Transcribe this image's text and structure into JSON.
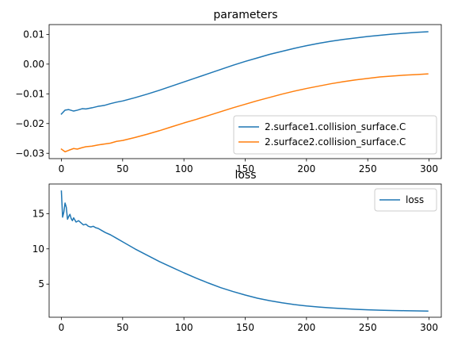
{
  "chart_data": [
    {
      "type": "line",
      "title": "parameters",
      "xlabel": "",
      "ylabel": "",
      "xlim": [
        -10,
        310
      ],
      "ylim": [
        -0.0318,
        0.0133
      ],
      "xticks": [
        0,
        50,
        100,
        150,
        200,
        250,
        300
      ],
      "yticks": [
        -0.03,
        -0.02,
        -0.01,
        0.0,
        0.01
      ],
      "ytick_labels": [
        "−0.03",
        "−0.02",
        "−0.01",
        "0.00",
        "0.01"
      ],
      "grid": false,
      "legend_position": "lower-right",
      "series": [
        {
          "name": "2.surface1.collision_surface.C",
          "color": "#1f77b4",
          "x": [
            0,
            3,
            6,
            10,
            13,
            17,
            20,
            25,
            30,
            35,
            40,
            45,
            50,
            60,
            70,
            80,
            90,
            100,
            110,
            120,
            130,
            140,
            150,
            160,
            170,
            180,
            190,
            200,
            210,
            220,
            230,
            240,
            250,
            260,
            270,
            280,
            290,
            299
          ],
          "y": [
            -0.0168,
            -0.0155,
            -0.0153,
            -0.0158,
            -0.0155,
            -0.015,
            -0.0151,
            -0.0147,
            -0.0142,
            -0.0139,
            -0.0133,
            -0.0128,
            -0.0124,
            -0.0113,
            -0.0101,
            -0.0088,
            -0.0074,
            -0.006,
            -0.0046,
            -0.0032,
            -0.0018,
            -0.0004,
            0.0009,
            0.0021,
            0.0033,
            0.0043,
            0.0053,
            0.0062,
            0.007,
            0.0077,
            0.0083,
            0.0088,
            0.0093,
            0.0097,
            0.0101,
            0.0104,
            0.0107,
            0.0109
          ]
        },
        {
          "name": "2.surface2.collision_surface.C",
          "color": "#ff7f0e",
          "x": [
            0,
            3,
            6,
            10,
            13,
            17,
            20,
            25,
            30,
            35,
            40,
            45,
            50,
            60,
            70,
            80,
            90,
            100,
            110,
            120,
            130,
            140,
            150,
            160,
            170,
            180,
            190,
            200,
            210,
            220,
            230,
            240,
            250,
            260,
            270,
            280,
            290,
            299
          ],
          "y": [
            -0.0286,
            -0.0295,
            -0.029,
            -0.0284,
            -0.0286,
            -0.0281,
            -0.0278,
            -0.0276,
            -0.0272,
            -0.0269,
            -0.0266,
            -0.026,
            -0.0257,
            -0.0247,
            -0.0236,
            -0.0224,
            -0.0211,
            -0.0198,
            -0.0186,
            -0.0173,
            -0.016,
            -0.0147,
            -0.0135,
            -0.0123,
            -0.0112,
            -0.0101,
            -0.0091,
            -0.0082,
            -0.0074,
            -0.0066,
            -0.0059,
            -0.0053,
            -0.0048,
            -0.0043,
            -0.004,
            -0.0037,
            -0.0035,
            -0.0033
          ]
        }
      ]
    },
    {
      "type": "line",
      "title": "loss",
      "xlabel": "",
      "ylabel": "",
      "xlim": [
        -10,
        310
      ],
      "ylim": [
        0.3,
        19.2
      ],
      "xticks": [
        0,
        50,
        100,
        150,
        200,
        250,
        300
      ],
      "yticks": [
        5,
        10,
        15
      ],
      "ytick_labels": [
        "5",
        "10",
        "15"
      ],
      "grid": false,
      "legend_position": "upper-right",
      "series": [
        {
          "name": "loss",
          "color": "#1f77b4",
          "x": [
            0,
            1,
            2,
            3,
            4,
            5,
            6,
            7,
            8,
            9,
            10,
            12,
            14,
            16,
            18,
            20,
            22,
            24,
            26,
            28,
            30,
            33,
            36,
            40,
            45,
            50,
            60,
            70,
            80,
            90,
            100,
            110,
            120,
            130,
            140,
            150,
            160,
            170,
            180,
            190,
            200,
            210,
            220,
            230,
            240,
            250,
            260,
            270,
            280,
            290,
            299
          ],
          "y": [
            18.2,
            14.5,
            15.2,
            16.5,
            15.9,
            14.2,
            14.6,
            14.9,
            14.3,
            14.0,
            14.4,
            13.8,
            14.0,
            13.7,
            13.4,
            13.5,
            13.2,
            13.1,
            13.2,
            13.0,
            12.9,
            12.6,
            12.3,
            12.0,
            11.5,
            11.0,
            10.0,
            9.1,
            8.2,
            7.4,
            6.6,
            5.85,
            5.15,
            4.5,
            3.95,
            3.45,
            3.0,
            2.65,
            2.35,
            2.1,
            1.9,
            1.75,
            1.62,
            1.52,
            1.43,
            1.36,
            1.3,
            1.26,
            1.23,
            1.2,
            1.18
          ]
        }
      ]
    }
  ]
}
